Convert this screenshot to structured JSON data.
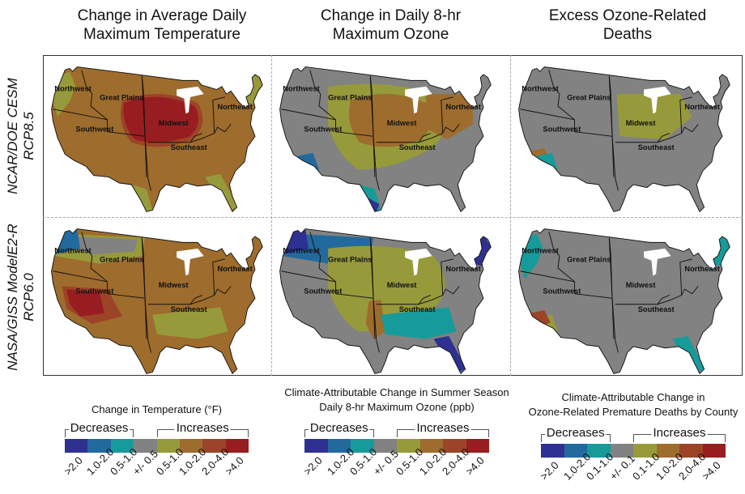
{
  "columns": [
    {
      "title_line1": "Change in Average Daily",
      "title_line2": "Maximum Temperature"
    },
    {
      "title_line1": "Change in Daily 8-hr",
      "title_line2": "Maximum Ozone"
    },
    {
      "title_line1": "Excess Ozone-Related",
      "title_line2": "Deaths"
    }
  ],
  "rows": [
    {
      "model": "NCAR/DOE CESM",
      "scenario": "RCP8.5"
    },
    {
      "model": "NASA/GISS ModelE2-R",
      "scenario": "RCP6.0"
    }
  ],
  "regions": [
    "Northwest",
    "Great Plains",
    "Midwest",
    "Northeast",
    "Southwest",
    "Southeast"
  ],
  "colors": {
    "dec_gt2": "#2e3192",
    "dec_1_2": "#226a9e",
    "dec_05_1": "#179b9a",
    "neutral": "#818281",
    "inc_05_1": "#979a3a",
    "inc_1_2": "#9e6c2d",
    "inc_2_4": "#9c4427",
    "inc_gt4": "#981d20"
  },
  "panels": [
    {
      "row": 0,
      "col": 0,
      "base": "inc_1_2",
      "patches": [
        {
          "c": "inc_2_4",
          "r": "midwest-core"
        },
        {
          "c": "inc_gt4",
          "r": "central"
        },
        {
          "c": "inc_05_1",
          "r": "nw-coast"
        },
        {
          "c": "inc_05_1",
          "r": "fl"
        },
        {
          "c": "inc_05_1",
          "r": "tx-coast"
        },
        {
          "c": "inc_05_1",
          "r": "maine"
        }
      ]
    },
    {
      "row": 0,
      "col": 1,
      "base": "neutral",
      "patches": [
        {
          "c": "inc_05_1",
          "r": "plains-band"
        },
        {
          "c": "inc_1_2",
          "r": "midwest-core"
        },
        {
          "c": "inc_1_2",
          "r": "ne-band"
        },
        {
          "c": "dec_05_1",
          "r": "tx-coast"
        },
        {
          "c": "dec_gt2",
          "r": "tx-tip"
        },
        {
          "c": "dec_1_2",
          "r": "az-south"
        }
      ]
    },
    {
      "row": 0,
      "col": 2,
      "base": "neutral",
      "patches": [
        {
          "c": "inc_05_1",
          "r": "midwest-dots"
        },
        {
          "c": "inc_1_2",
          "r": "socal"
        },
        {
          "c": "dec_05_1",
          "r": "az-south"
        },
        {
          "c": "dec_05_1",
          "r": "fl-tip"
        }
      ]
    },
    {
      "row": 1,
      "col": 0,
      "base": "inc_1_2",
      "patches": [
        {
          "c": "inc_05_1",
          "r": "north-band"
        },
        {
          "c": "neutral",
          "r": "mt-band"
        },
        {
          "c": "dec_1_2",
          "r": "wa"
        },
        {
          "c": "inc_2_4",
          "r": "sw-core"
        },
        {
          "c": "inc_gt4",
          "r": "sw-core2"
        },
        {
          "c": "inc_05_1",
          "r": "se-band"
        }
      ]
    },
    {
      "row": 1,
      "col": 1,
      "base": "neutral",
      "patches": [
        {
          "c": "dec_1_2",
          "r": "north-band"
        },
        {
          "c": "dec_gt2",
          "r": "wa"
        },
        {
          "c": "dec_gt2",
          "r": "maine"
        },
        {
          "c": "inc_05_1",
          "r": "plains-band"
        },
        {
          "c": "inc_1_2",
          "r": "ok"
        },
        {
          "c": "dec_05_1",
          "r": "se-band"
        },
        {
          "c": "dec_gt2",
          "r": "fl"
        }
      ]
    },
    {
      "row": 1,
      "col": 2,
      "base": "neutral",
      "patches": [
        {
          "c": "dec_05_1",
          "r": "nw-coast"
        },
        {
          "c": "inc_05_1",
          "r": "az-south"
        },
        {
          "c": "inc_2_4",
          "r": "socal"
        },
        {
          "c": "dec_05_1",
          "r": "maine"
        },
        {
          "c": "dec_05_1",
          "r": "fl"
        }
      ]
    }
  ],
  "legends": [
    {
      "title_line1": "Change in Temperature (°F)",
      "title_line2": "",
      "decreases_label": "Decreases",
      "increases_label": "Increases",
      "bins": [
        ">2.0",
        "1.0-2.0",
        "0.5-1.0",
        "+/- 0.5",
        "0.5-1.0",
        "1.0-2.0",
        "2.0-4.0",
        ">4.0"
      ]
    },
    {
      "title_line1": "Climate-Attributable Change in Summer Season",
      "title_line2": "Daily 8-hr Maximum Ozone (ppb)",
      "decreases_label": "Decreases",
      "increases_label": "Increases",
      "bins": [
        ">2.0",
        "1.0-2.0",
        "0.5-1.0",
        "+/- 0.5",
        "0.5-1.0",
        "1.0-2.0",
        "2.0-4.0",
        ">4.0"
      ]
    },
    {
      "title_line1": "Climate-Attributable Change in",
      "title_line2": "Ozone-Related Premature Deaths by County",
      "decreases_label": "Decreases",
      "increases_label": "Increases",
      "bins": [
        ">2.0",
        "1.0-2.0",
        "0.1-1.0",
        "+/- 0.1",
        "0.1-1.0",
        "1.0-2.0",
        "2.0-4.0",
        ">4.0"
      ]
    }
  ]
}
